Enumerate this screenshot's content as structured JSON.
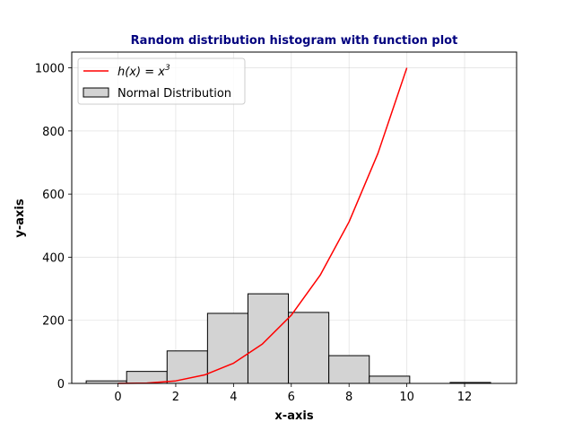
{
  "chart_data": {
    "type": "bar",
    "title": "Random distribution histogram with function plot",
    "xlabel": "x-axis",
    "ylabel": "y-axis",
    "xlim": [
      -1.6,
      13.8
    ],
    "ylim": [
      0,
      1050
    ],
    "xticks": [
      0,
      2,
      4,
      6,
      8,
      10,
      12
    ],
    "yticks": [
      0,
      200,
      400,
      600,
      800,
      1000
    ],
    "grid": true,
    "legend_position": "top-left",
    "histogram": {
      "name": "Normal Distribution",
      "bins": [
        {
          "x0": -1.1,
          "x1": 0.3,
          "value": 8
        },
        {
          "x0": 0.3,
          "x1": 1.7,
          "value": 38
        },
        {
          "x0": 1.7,
          "x1": 3.1,
          "value": 103
        },
        {
          "x0": 3.1,
          "x1": 4.5,
          "value": 222
        },
        {
          "x0": 4.5,
          "x1": 5.9,
          "value": 284
        },
        {
          "x0": 5.9,
          "x1": 7.3,
          "value": 225
        },
        {
          "x0": 7.3,
          "x1": 8.7,
          "value": 88
        },
        {
          "x0": 8.7,
          "x1": 10.1,
          "value": 23
        },
        {
          "x0": 10.1,
          "x1": 11.5,
          "value": 0
        },
        {
          "x0": 11.5,
          "x1": 12.9,
          "value": 3
        }
      ],
      "fill": "#d3d3d3",
      "edge": "#000000"
    },
    "line": {
      "name_prefix": "h(x) = x",
      "name_exponent": "3",
      "color": "#ff0000",
      "x": [
        0,
        1,
        2,
        3,
        4,
        5,
        6,
        7,
        8,
        9,
        10
      ],
      "y": [
        0,
        1,
        8,
        27,
        64,
        125,
        216,
        343,
        512,
        729,
        1000
      ]
    },
    "title_color": "#00007f"
  }
}
